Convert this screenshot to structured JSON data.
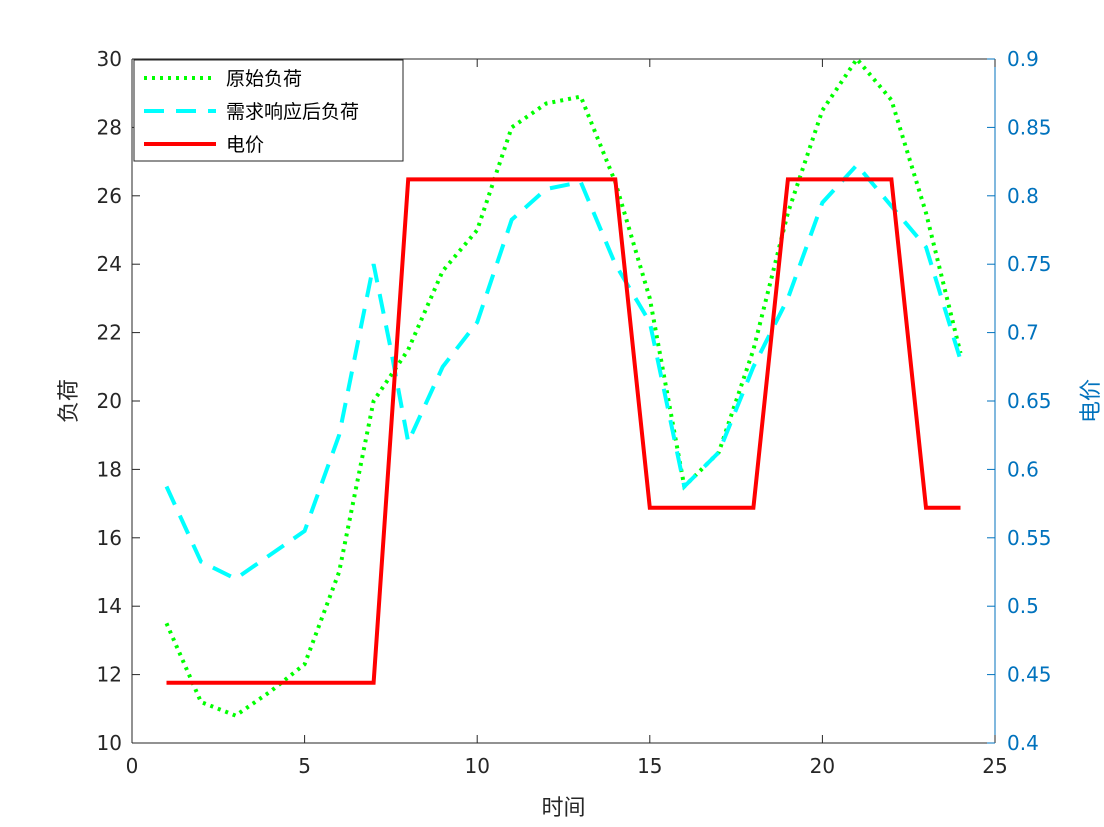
{
  "chart_data": {
    "type": "line",
    "xlabel": "时间",
    "ylabel_left": "负荷",
    "ylabel_right": "电价",
    "xlim": [
      0,
      25
    ],
    "ylim_left": [
      10,
      30
    ],
    "ylim_right": [
      0.4,
      0.9
    ],
    "x_ticks": [
      "0",
      "5",
      "10",
      "15",
      "20",
      "25"
    ],
    "y_left_ticks": [
      "10",
      "12",
      "14",
      "16",
      "18",
      "20",
      "22",
      "24",
      "26",
      "28",
      "30"
    ],
    "y_right_ticks": [
      "0.4",
      "0.45",
      "0.5",
      "0.55",
      "0.6",
      "0.65",
      "0.7",
      "0.75",
      "0.8",
      "0.85",
      "0.9"
    ],
    "grid": false,
    "legend_position": "top-left",
    "colors": {
      "original": "#00FF00",
      "response": "#00FFFF",
      "price": "#FF0000",
      "right_axis": "#0072BD",
      "left_axis": "#262626"
    },
    "series": [
      {
        "name": "原始负荷",
        "axis": "left",
        "style": "dotted",
        "x": [
          1,
          2,
          3,
          4,
          5,
          6,
          7,
          8,
          9,
          10,
          11,
          12,
          13,
          14,
          15,
          16,
          17,
          18,
          19,
          20,
          21,
          22,
          23,
          24
        ],
        "values": [
          13.5,
          11.2,
          10.8,
          11.5,
          12.3,
          15.0,
          20.0,
          21.5,
          23.8,
          25.0,
          28.0,
          28.7,
          28.9,
          26.4,
          23.0,
          17.5,
          18.5,
          21.5,
          25.5,
          28.5,
          30.0,
          28.8,
          25.5,
          21.4
        ]
      },
      {
        "name": "需求响应后负荷",
        "axis": "left",
        "style": "dashed",
        "x": [
          1,
          2,
          3,
          4,
          5,
          6,
          7,
          7.5,
          8,
          9,
          10,
          11,
          12,
          13,
          14,
          15,
          16,
          17,
          18,
          19,
          20,
          21,
          22,
          23,
          24
        ],
        "values": [
          17.5,
          15.3,
          14.8,
          15.5,
          16.2,
          19.0,
          24.0,
          21.5,
          18.8,
          21.0,
          22.3,
          25.3,
          26.2,
          26.4,
          24.0,
          22.3,
          17.5,
          18.5,
          21.0,
          23.0,
          25.8,
          26.9,
          25.7,
          24.5,
          21.2
        ]
      },
      {
        "name": "电价",
        "axis": "right",
        "style": "solid",
        "x": [
          1,
          2,
          3,
          4,
          5,
          6,
          7,
          8,
          9,
          10,
          11,
          12,
          13,
          14,
          15,
          16,
          17,
          18,
          19,
          20,
          21,
          22,
          23,
          24
        ],
        "values": [
          0.444,
          0.444,
          0.444,
          0.444,
          0.444,
          0.444,
          0.444,
          0.812,
          0.812,
          0.812,
          0.812,
          0.812,
          0.812,
          0.812,
          0.572,
          0.572,
          0.572,
          0.572,
          0.812,
          0.812,
          0.812,
          0.812,
          0.572,
          0.572
        ]
      }
    ]
  }
}
